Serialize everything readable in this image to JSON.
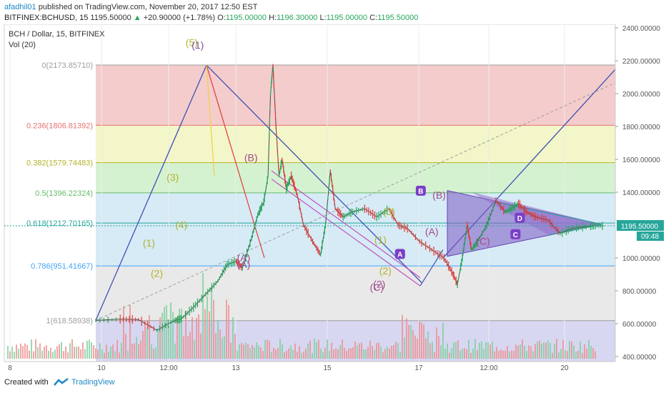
{
  "header": {
    "author": "afadhil01",
    "published": "published on TradingView.com, November 20, 2017 12:50 EST",
    "symbol": "BITFINEX:BCHUSD, 15",
    "last": "1195.50000",
    "change_arrow": "▲",
    "change": "+20.90000 (+1.78%)",
    "o_label": "O:",
    "o_val": "1195.00000",
    "h_label": "H:",
    "h_val": "1196.30000",
    "l_label": "L:",
    "l_val": "1195.00000",
    "c_label": "C:",
    "c_val": "1195.50000"
  },
  "legend": {
    "title": "BCH / Dollar, 15, BITFINEX",
    "volume": "Vol (20)"
  },
  "footer": {
    "created": "Created with",
    "brand": "TradingView"
  },
  "colors": {
    "up": "#26a65b",
    "down": "#e53935",
    "price_line": "#26a69a",
    "fib_red": "#f4cccc",
    "fib_yellow": "#f3f6c8",
    "fib_green": "#d5f2d0",
    "fib_blue": "#d6ebf6",
    "fib_gray": "#e9e9e9",
    "fib_lavender": "#d7d7f2",
    "tag_bg": "#26a69a"
  },
  "chart_data": {
    "type": "line",
    "y_axis": {
      "ticks": [
        "2400.00000",
        "2200.00000",
        "2000.00000",
        "1800.00000",
        "1600.00000",
        "1400.00000",
        "1195.50000",
        "1000.00000",
        "800.00000",
        "600.00000",
        "400.00000"
      ],
      "last_price": "1195.50000",
      "countdown": "09:48"
    },
    "x_axis": {
      "ticks": [
        "8",
        "10",
        "12:00",
        "13",
        "15",
        "17",
        "12:00",
        "20"
      ]
    },
    "fib_levels": [
      {
        "label": "0(2173.85710)",
        "value": 2173.8571,
        "color": "#9e9e9e"
      },
      {
        "label": "0.236(1806.81392)",
        "value": 1806.81392,
        "color": "#e57373"
      },
      {
        "label": "0.382(1579.74483)",
        "value": 1579.74483,
        "color": "#b3b32c"
      },
      {
        "label": "0.5(1396.22324)",
        "value": 1396.22324,
        "color": "#66bb6a"
      },
      {
        "label": "0.618(1212.70165)",
        "value": 1212.70165,
        "color": "#26a69a"
      },
      {
        "label": "0.786(951.41667)",
        "value": 951.41667,
        "color": "#42a5f5"
      },
      {
        "label": "1(618.58938)",
        "value": 618.58938,
        "color": "#9e9e9e"
      }
    ],
    "price_path": [
      [
        0,
        620
      ],
      [
        40,
        628
      ],
      [
        70,
        625
      ],
      [
        100,
        560
      ],
      [
        128,
        618
      ],
      [
        140,
        630
      ],
      [
        160,
        700
      ],
      [
        180,
        780
      ],
      [
        200,
        860
      ],
      [
        215,
        960
      ],
      [
        230,
        980
      ],
      [
        240,
        940
      ],
      [
        255,
        1120
      ],
      [
        265,
        1260
      ],
      [
        275,
        1340
      ],
      [
        282,
        1500
      ],
      [
        286,
        2000
      ],
      [
        290,
        2173
      ],
      [
        295,
        1800
      ],
      [
        300,
        1500
      ],
      [
        305,
        1600
      ],
      [
        312,
        1420
      ],
      [
        320,
        1500
      ],
      [
        330,
        1380
      ],
      [
        340,
        1200
      ],
      [
        355,
        1100
      ],
      [
        368,
        1020
      ],
      [
        376,
        1200
      ],
      [
        384,
        1530
      ],
      [
        392,
        1300
      ],
      [
        405,
        1250
      ],
      [
        420,
        1280
      ],
      [
        440,
        1300
      ],
      [
        460,
        1250
      ],
      [
        480,
        1300
      ],
      [
        495,
        1200
      ],
      [
        510,
        1180
      ],
      [
        530,
        1100
      ],
      [
        550,
        1050
      ],
      [
        570,
        1000
      ],
      [
        585,
        900
      ],
      [
        592,
        840
      ],
      [
        600,
        1000
      ],
      [
        608,
        1200
      ],
      [
        615,
        1050
      ],
      [
        625,
        1100
      ],
      [
        640,
        1200
      ],
      [
        655,
        1350
      ],
      [
        670,
        1280
      ],
      [
        680,
        1300
      ],
      [
        692,
        1330
      ],
      [
        705,
        1280
      ],
      [
        720,
        1250
      ],
      [
        740,
        1230
      ],
      [
        760,
        1150
      ],
      [
        780,
        1180
      ],
      [
        800,
        1190
      ],
      [
        815,
        1195
      ],
      [
        832,
        1195.5
      ]
    ],
    "wave_labels": [
      {
        "text": "(1)",
        "color": "#b3b32c",
        "x": 215,
        "y": 1070
      },
      {
        "text": "(2)",
        "color": "#b3b32c",
        "x": 228,
        "y": 885
      },
      {
        "text": "(3)",
        "color": "#b3b32c",
        "x": 254,
        "y": 1470
      },
      {
        "text": "(4)",
        "color": "#b3b32c",
        "x": 268,
        "y": 1180
      },
      {
        "text": "(5)",
        "color": "#b3b32c",
        "x": 285,
        "y": 2290
      },
      {
        "text": "(1)",
        "color": "#7b4fa0",
        "x": 295,
        "y": 2275
      },
      {
        "text": "(A)",
        "color": "#a04a8a",
        "x": 370,
        "y": 980
      },
      {
        "text": "(A)",
        "color": "#a04a8a",
        "x": 370,
        "y": 940
      },
      {
        "text": "(B)",
        "color": "#a04a8a",
        "x": 382,
        "y": 1590
      },
      {
        "text": "(C)",
        "color": "#a04a8a",
        "x": 588,
        "y": 800
      },
      {
        "text": "(2)",
        "color": "#a04a8a",
        "x": 592,
        "y": 820
      },
      {
        "text": "(1)",
        "color": "#b3b32c",
        "x": 594,
        "y": 1090
      },
      {
        "text": "(2)",
        "color": "#b3b32c",
        "x": 602,
        "y": 900
      },
      {
        "text": "(3)",
        "color": "#b3b32c",
        "x": 608,
        "y": 1260
      },
      {
        "text": "(A)",
        "color": "#a04a8a",
        "x": 678,
        "y": 1140
      },
      {
        "text": "(B)",
        "color": "#a04a8a",
        "x": 690,
        "y": 1360
      },
      {
        "text": "(C)",
        "color": "#a04a8a",
        "x": 762,
        "y": 1080
      }
    ],
    "pattern_labels": [
      {
        "text": "A",
        "x": 626,
        "y": 1020
      },
      {
        "text": "B",
        "x": 660,
        "y": 1405
      },
      {
        "text": "C",
        "x": 815,
        "y": 1140
      },
      {
        "text": "D",
        "x": 822,
        "y": 1240
      }
    ]
  }
}
